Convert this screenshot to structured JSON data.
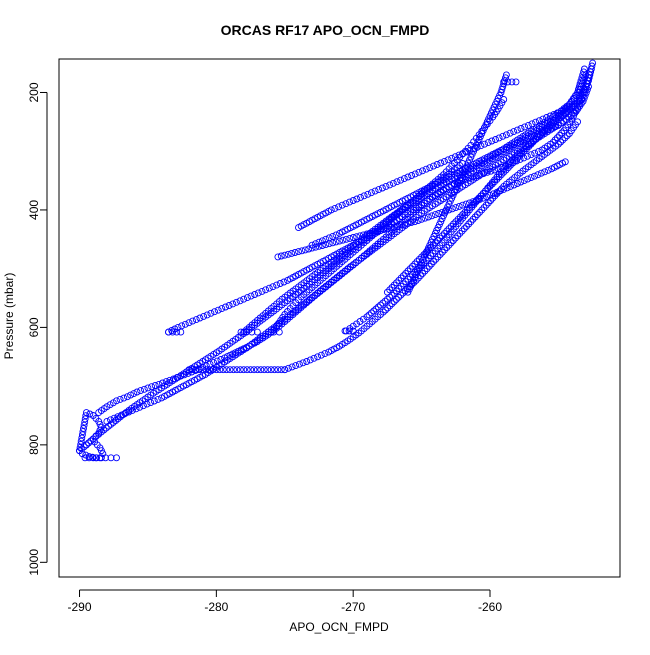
{
  "chart_data": {
    "type": "scatter",
    "title": "ORCAS RF17 APO_OCN_FMPD",
    "xlabel": "APO_OCN_FMPD",
    "ylabel": "Pressure (mbar)",
    "xlim": [
      -291.5,
      -250.5
    ],
    "ylim": [
      1025,
      143
    ],
    "y_reversed": true,
    "x_ticks": [
      -290,
      -280,
      -270,
      -260
    ],
    "x_tick_labels": [
      "-290",
      "-280",
      "-270",
      "-260"
    ],
    "y_ticks": [
      200,
      400,
      600,
      800,
      1000
    ],
    "y_tick_labels": [
      "200",
      "400",
      "600",
      "800",
      "1000"
    ],
    "grid": false,
    "legend": "none",
    "marker": "open-circle",
    "color": "#0000ff",
    "series": [
      {
        "x": [
          -290.0,
          -289.5,
          -289.0,
          -288.6,
          -288.4,
          -288.6,
          -289.0,
          -289.5,
          -290.0,
          -289.8,
          -289.3,
          -288.8,
          -288.4,
          -288.3,
          -288.5,
          -288.9
        ],
        "y": [
          810,
          800,
          790,
          780,
          770,
          760,
          750,
          745,
          810,
          815,
          820,
          822,
          822,
          815,
          805,
          795
        ]
      },
      {
        "x": [
          -289.6,
          -289.0,
          -288.5,
          -288.1,
          -287.7,
          -287.3
        ],
        "y": [
          822,
          822,
          822,
          822,
          822,
          822
        ]
      },
      {
        "x": [
          -288.6,
          -288.0,
          -287.3,
          -286.5,
          -285.8,
          -285.0,
          -284.2,
          -283.4,
          -282.6,
          -281.8,
          -281.0,
          -280.2,
          -279.4,
          -278.6,
          -277.8,
          -277.0,
          -276.2,
          -275.4,
          -274.6,
          -273.8,
          -273.0,
          -272.2,
          -271.4,
          -270.6,
          -269.8,
          -269.0,
          -268.2,
          -267.4,
          -266.6,
          -265.8,
          -265.0,
          -264.2,
          -263.4,
          -262.6,
          -261.8,
          -261.0,
          -260.2,
          -259.4,
          -258.6,
          -257.8,
          -257.0,
          -256.2,
          -255.4,
          -254.6,
          -253.9,
          -253.3,
          -252.8,
          -252.5
        ],
        "y": [
          745,
          735,
          725,
          718,
          710,
          703,
          697,
          690,
          683,
          676,
          668,
          660,
          652,
          643,
          634,
          624,
          612,
          598,
          582,
          566,
          550,
          535,
          520,
          505,
          490,
          474,
          458,
          442,
          425,
          408,
          392,
          378,
          366,
          356,
          348,
          342,
          336,
          330,
          322,
          314,
          306,
          298,
          285,
          265,
          240,
          210,
          180,
          150
        ]
      },
      {
        "x": [
          -289.5,
          -289.0,
          -288.4,
          -287.7,
          -287.0,
          -286.2,
          -285.4,
          -284.6,
          -283.8,
          -283.0,
          -282.2,
          -281.4,
          -280.6,
          -279.8,
          -279.0,
          -278.2,
          -277.4,
          -276.6,
          -275.8,
          -275.0,
          -274.2,
          -273.4,
          -272.6,
          -271.8,
          -271.0,
          -270.2,
          -269.4,
          -268.6,
          -267.8,
          -267.0,
          -266.2,
          -265.4,
          -264.6,
          -263.8,
          -263.0,
          -262.2,
          -261.4,
          -260.6,
          -259.8,
          -259.0,
          -258.2,
          -257.4,
          -256.6,
          -255.8,
          -255.0,
          -254.2,
          -253.6,
          -253.1
        ],
        "y": [
          800,
          790,
          778,
          765,
          752,
          738,
          725,
          712,
          700,
          688,
          676,
          664,
          652,
          640,
          627,
          614,
          600,
          586,
          572,
          558,
          544,
          530,
          515,
          500,
          485,
          470,
          455,
          440,
          425,
          410,
          396,
          384,
          372,
          360,
          350,
          340,
          330,
          320,
          308,
          296,
          284,
          272,
          260,
          248,
          235,
          220,
          200,
          160
        ]
      },
      {
        "x": [
          -288.0,
          -287.2,
          -286.4,
          -285.6,
          -284.8,
          -284.0,
          -283.2,
          -282.4,
          -281.6,
          -280.8,
          -280.0,
          -279.2,
          -278.4,
          -277.6,
          -276.8,
          -276.0,
          -275.2,
          -274.4,
          -273.6,
          -272.8,
          -272.0,
          -271.2,
          -270.4,
          -269.6,
          -268.8,
          -268.0,
          -267.2,
          -266.4,
          -265.6,
          -264.8,
          -264.0,
          -263.2,
          -262.4,
          -261.6,
          -260.8,
          -260.0,
          -259.2,
          -258.4,
          -257.6,
          -256.8,
          -256.0,
          -255.2,
          -254.4,
          -253.7,
          -253.2,
          -252.8
        ],
        "y": [
          760,
          752,
          744,
          736,
          728,
          720,
          710,
          700,
          690,
          680,
          668,
          656,
          644,
          632,
          618,
          604,
          590,
          575,
          560,
          545,
          530,
          515,
          500,
          486,
          472,
          458,
          444,
          430,
          416,
          402,
          390,
          378,
          366,
          354,
          342,
          330,
          318,
          306,
          294,
          282,
          270,
          258,
          246,
          232,
          215,
          190
        ]
      },
      {
        "x": [
          -283.5,
          -282.8,
          -282.0,
          -281.2,
          -280.4,
          -279.6,
          -278.8,
          -278.0,
          -277.2,
          -276.4,
          -275.6,
          -274.8,
          -274.0,
          -273.2,
          -272.4,
          -271.6,
          -270.8,
          -270.0,
          -269.2,
          -268.4,
          -267.6,
          -266.8,
          -266.0,
          -265.2,
          -264.4,
          -263.6,
          -262.8,
          -262.0,
          -261.2,
          -260.4,
          -259.6,
          -258.8,
          -258.0,
          -257.2,
          -256.4,
          -255.6,
          -254.8,
          -254.0,
          -253.3
        ],
        "y": [
          608,
          600,
          592,
          584,
          576,
          568,
          560,
          552,
          544,
          536,
          528,
          520,
          510,
          500,
          490,
          480,
          470,
          460,
          450,
          440,
          430,
          418,
          406,
          394,
          382,
          370,
          358,
          346,
          334,
          322,
          310,
          298,
          286,
          274,
          262,
          250,
          238,
          226,
          212
        ]
      },
      {
        "x": [
          -283.5,
          -283.2,
          -282.9,
          -282.6
        ],
        "y": [
          608,
          608,
          608,
          608
        ]
      },
      {
        "x": [
          -278.0,
          -277.6,
          -277.2,
          -276.8,
          -276.4,
          -276.0,
          -275.6,
          -275.2,
          -274.8,
          -274.4,
          -274.0,
          -273.6,
          -273.2,
          -272.8,
          -272.4,
          -272.0,
          -271.6,
          -271.2,
          -270.8,
          -270.4,
          -270.0,
          -269.6,
          -269.2,
          -268.8,
          -268.4,
          -268.0,
          -267.6,
          -267.2,
          -266.8,
          -266.4,
          -266.0,
          -265.6,
          -265.2,
          -264.8,
          -264.4,
          -264.0,
          -263.6,
          -263.2,
          -262.8,
          -262.4,
          -262.0
        ],
        "y": [
          608,
          600,
          592,
          584,
          576,
          568,
          560,
          552,
          545,
          538,
          531,
          524,
          517,
          510,
          503,
          496,
          489,
          482,
          475,
          468,
          461,
          454,
          447,
          440,
          433,
          426,
          419,
          412,
          405,
          398,
          391,
          384,
          377,
          370,
          363,
          356,
          349,
          342,
          335,
          328,
          321
        ]
      },
      {
        "x": [
          -278.2,
          -277.8,
          -277.4,
          -277.0
        ],
        "y": [
          608,
          608,
          608,
          608
        ]
      },
      {
        "x": [
          -276.0,
          -275.6,
          -275.3,
          -275.0,
          -274.6,
          -274.2,
          -273.8,
          -273.4,
          -273.0,
          -272.6,
          -272.2,
          -271.8,
          -271.4,
          -271.0,
          -270.6,
          -270.2,
          -269.8,
          -269.4,
          -269.0,
          -268.6,
          -268.2,
          -267.8,
          -267.4,
          -267.0,
          -266.6,
          -266.2,
          -265.8,
          -265.4,
          -265.0,
          -264.6,
          -264.2,
          -263.8,
          -263.4,
          -263.0,
          -262.6,
          -262.2,
          -261.8,
          -261.4,
          -261.0,
          -260.6,
          -260.2,
          -259.8,
          -259.4,
          -259.0
        ],
        "y": [
          608,
          598,
          588,
          578,
          568,
          558,
          548,
          540,
          532,
          524,
          516,
          508,
          500,
          492,
          484,
          476,
          468,
          460,
          452,
          444,
          436,
          428,
          420,
          412,
          404,
          396,
          388,
          380,
          372,
          364,
          356,
          348,
          340,
          330,
          320,
          310,
          300,
          290,
          278,
          266,
          254,
          242,
          228,
          212
        ]
      },
      {
        "x": [
          -276.2,
          -275.8,
          -275.4
        ],
        "y": [
          608,
          608,
          608
        ]
      },
      {
        "x": [
          -270.5,
          -270.0,
          -269.5,
          -269.0,
          -268.5,
          -268.0,
          -267.5,
          -267.0,
          -266.5,
          -266.0,
          -265.5,
          -265.0,
          -264.5,
          -264.0,
          -263.5,
          -263.0,
          -262.5,
          -262.0,
          -261.5,
          -261.0,
          -260.5,
          -260.0,
          -259.5,
          -259.0,
          -258.5,
          -258.0,
          -257.5,
          -257.0,
          -256.5,
          -256.0,
          -255.5,
          -255.0,
          -254.5,
          -254.0,
          -253.5,
          -253.0,
          -252.6
        ],
        "y": [
          606,
          598,
          590,
          582,
          572,
          562,
          552,
          542,
          530,
          518,
          506,
          494,
          482,
          470,
          456,
          442,
          428,
          414,
          400,
          386,
          372,
          358,
          344,
          330,
          318,
          306,
          296,
          286,
          276,
          266,
          256,
          246,
          236,
          224,
          210,
          190,
          160
        ]
      },
      {
        "x": [
          -270.6,
          -270.3,
          -270.0
        ],
        "y": [
          606,
          606,
          606
        ]
      },
      {
        "x": [
          -282.0,
          -281.5,
          -281.0,
          -280.5,
          -280.0,
          -279.5,
          -279.0,
          -278.5,
          -278.0,
          -277.5,
          -277.0,
          -276.5,
          -276.0,
          -275.5,
          -275.0
        ],
        "y": [
          672,
          672,
          672,
          672,
          672,
          672,
          672,
          672,
          672,
          672,
          672,
          672,
          672,
          672,
          672
        ]
      },
      {
        "x": [
          -275.0,
          -274.2,
          -273.4,
          -272.6,
          -271.8,
          -271.0,
          -270.2,
          -269.4,
          -268.6,
          -267.8,
          -267.0,
          -266.2,
          -265.4,
          -264.6,
          -263.8,
          -263.0,
          -262.2,
          -261.4,
          -260.6,
          -259.8,
          -259.0,
          -258.2,
          -257.4,
          -256.6,
          -255.8,
          -255.0,
          -254.2,
          -253.6
        ],
        "y": [
          672,
          665,
          658,
          650,
          642,
          632,
          620,
          606,
          590,
          574,
          556,
          538,
          520,
          500,
          480,
          460,
          440,
          420,
          400,
          380,
          360,
          345,
          330,
          316,
          302,
          288,
          270,
          250
        ]
      },
      {
        "x": [
          -266.0,
          -265.8,
          -265.6,
          -265.4,
          -265.2,
          -265.0,
          -264.8,
          -264.6,
          -264.4,
          -264.2,
          -264.0,
          -263.8,
          -263.6,
          -263.4,
          -263.2,
          -263.0,
          -262.8,
          -262.6,
          -262.4,
          -262.2,
          -262.0,
          -261.8,
          -261.6,
          -261.4,
          -261.2,
          -261.0,
          -260.8,
          -260.6,
          -260.4,
          -260.2,
          -260.0,
          -259.8,
          -259.6,
          -259.4,
          -259.2,
          -259.0,
          -258.8
        ],
        "y": [
          540,
          530,
          520,
          510,
          500,
          490,
          480,
          470,
          460,
          450,
          440,
          430,
          420,
          410,
          400,
          390,
          380,
          370,
          360,
          350,
          340,
          330,
          320,
          310,
          300,
          290,
          280,
          270,
          260,
          250,
          240,
          230,
          220,
          210,
          200,
          185,
          170
        ]
      },
      {
        "x": [
          -259.0,
          -258.7,
          -258.4,
          -258.1
        ],
        "y": [
          182,
          182,
          182,
          182
        ]
      },
      {
        "x": [
          -267.5,
          -267.0,
          -266.5,
          -266.0,
          -265.5,
          -265.0,
          -264.5,
          -264.0,
          -263.5,
          -263.0,
          -262.5,
          -262.0,
          -261.5,
          -261.0,
          -260.5,
          -260.0,
          -259.5,
          -259.0,
          -258.5,
          -258.0,
          -257.5,
          -257.0,
          -256.5,
          -256.0,
          -255.5,
          -255.0,
          -254.5,
          -254.0,
          -253.5,
          -253.0
        ],
        "y": [
          540,
          528,
          516,
          504,
          492,
          480,
          468,
          456,
          444,
          432,
          420,
          408,
          396,
          384,
          372,
          360,
          348,
          336,
          324,
          312,
          300,
          288,
          276,
          264,
          252,
          240,
          228,
          216,
          200,
          170
        ]
      },
      {
        "x": [
          -275.5,
          -274.5,
          -273.5,
          -272.5,
          -271.5,
          -270.5,
          -269.5,
          -268.5,
          -267.5,
          -266.5,
          -265.5,
          -264.5,
          -263.5,
          -262.5,
          -261.5,
          -260.5,
          -259.5,
          -258.5,
          -257.5,
          -256.5,
          -255.5,
          -254.5
        ],
        "y": [
          480,
          474,
          468,
          462,
          456,
          450,
          444,
          438,
          432,
          426,
          420,
          412,
          404,
          396,
          388,
          380,
          370,
          360,
          350,
          340,
          330,
          318
        ]
      },
      {
        "x": [
          -273.0,
          -272.0,
          -271.0,
          -270.0,
          -269.0,
          -268.0,
          -267.0,
          -266.0,
          -265.0,
          -264.0,
          -263.0,
          -262.0,
          -261.0,
          -260.0,
          -259.0,
          -258.0,
          -257.0,
          -256.0,
          -255.0
        ],
        "y": [
          460,
          450,
          440,
          428,
          416,
          404,
          392,
          380,
          368,
          356,
          344,
          332,
          320,
          308,
          296,
          286,
          276,
          266,
          256
        ]
      },
      {
        "x": [
          -274.0,
          -273.2,
          -272.4,
          -271.6,
          -270.8,
          -270.0,
          -269.2,
          -268.4,
          -267.6,
          -266.8,
          -266.0,
          -265.2,
          -264.4,
          -263.6,
          -262.8,
          -262.0,
          -261.2,
          -260.4,
          -259.6,
          -258.8,
          -258.0,
          -257.2,
          -256.4,
          -255.6,
          -254.8,
          -254.0
        ],
        "y": [
          430,
          420,
          410,
          400,
          392,
          384,
          376,
          368,
          360,
          352,
          344,
          336,
          328,
          320,
          312,
          304,
          296,
          288,
          280,
          272,
          264,
          256,
          248,
          240,
          232,
          222
        ]
      }
    ]
  }
}
